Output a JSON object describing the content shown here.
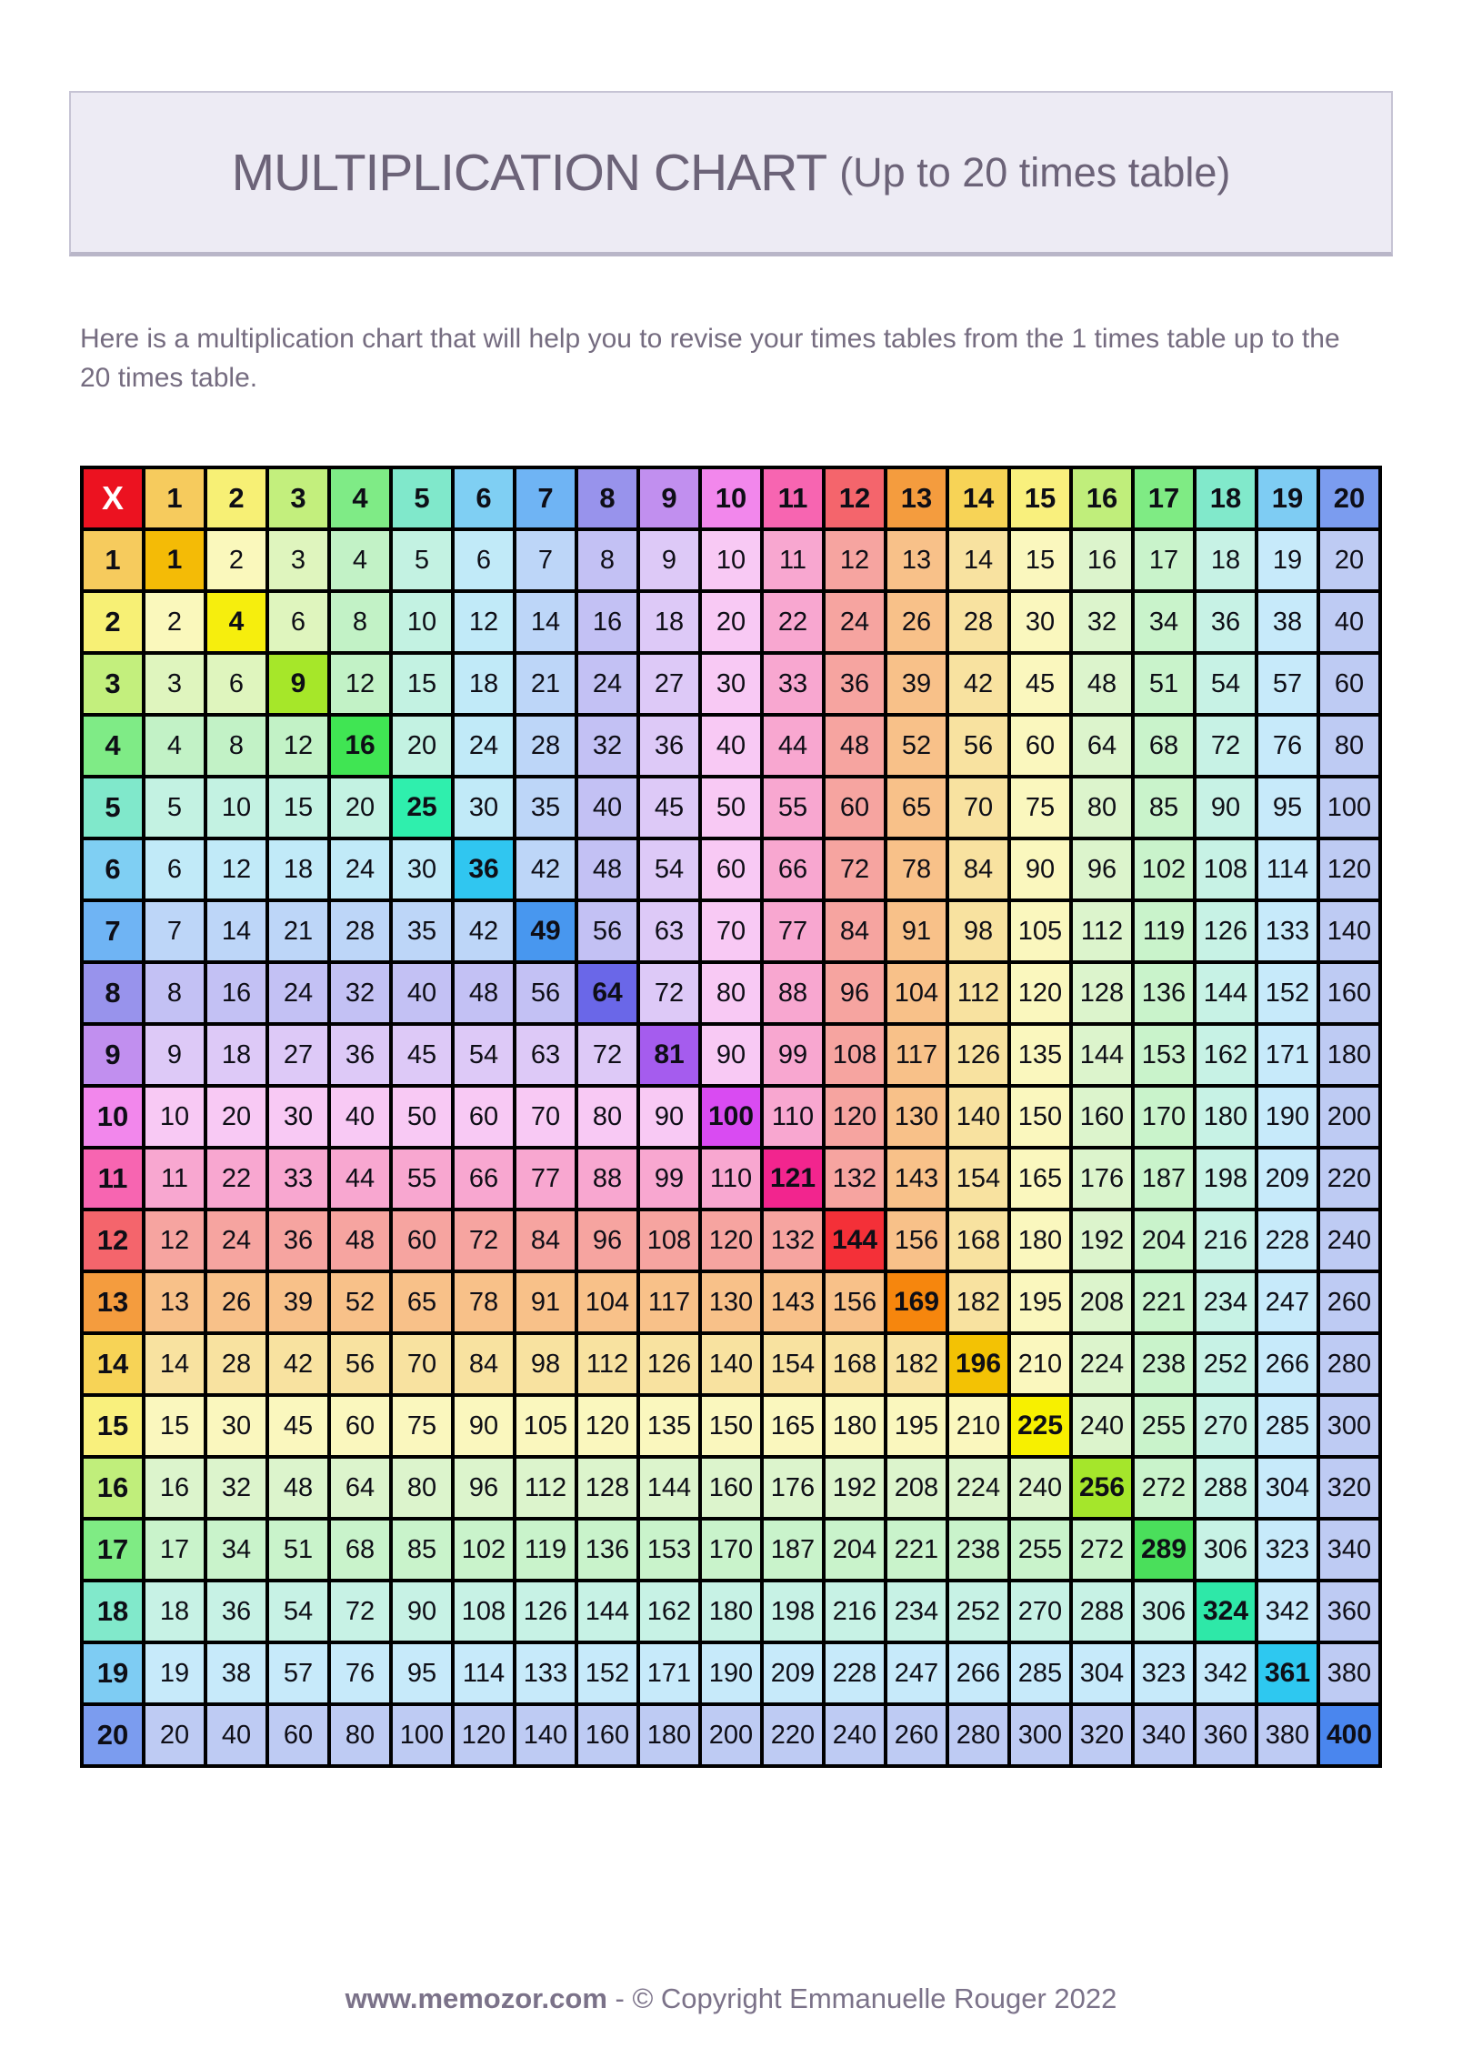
{
  "title": {
    "main": "MULTIPLICATION CHART",
    "sub": "(Up to 20 times table)",
    "box_bg": "#EDEBF4",
    "box_border": "#C6C3D4",
    "text_color": "#6C6378"
  },
  "description": {
    "text": "Here is a multiplication chart that will help you to revise your times tables from the 1 times table up to the 20 times table.",
    "color": "#756C80"
  },
  "footer": {
    "site": "www.memozor.com",
    "rest": " - © Copyright Emmanuelle Rouger 2022",
    "color": "#7B7289"
  },
  "table": {
    "corner_label": "X",
    "corner_bg": "#EC1220",
    "corner_text_color": "#FFFFFF",
    "border_color": "#000000",
    "text_color": "#0E0E16",
    "column_headers": [
      "1",
      "2",
      "3",
      "4",
      "5",
      "6",
      "7",
      "8",
      "9",
      "10",
      "11",
      "12",
      "13",
      "14",
      "15",
      "16",
      "17",
      "18",
      "19",
      "20"
    ],
    "row_headers": [
      "1",
      "2",
      "3",
      "4",
      "5",
      "6",
      "7",
      "8",
      "9",
      "10",
      "11",
      "12",
      "13",
      "14",
      "15",
      "16",
      "17",
      "18",
      "19",
      "20"
    ],
    "rows": [
      [
        1,
        2,
        3,
        4,
        5,
        6,
        7,
        8,
        9,
        10,
        11,
        12,
        13,
        14,
        15,
        16,
        17,
        18,
        19,
        20
      ],
      [
        2,
        4,
        6,
        8,
        10,
        12,
        14,
        16,
        18,
        20,
        22,
        24,
        26,
        28,
        30,
        32,
        34,
        36,
        38,
        40
      ],
      [
        3,
        6,
        9,
        12,
        15,
        18,
        21,
        24,
        27,
        30,
        33,
        36,
        39,
        42,
        45,
        48,
        51,
        54,
        57,
        60
      ],
      [
        4,
        8,
        12,
        16,
        20,
        24,
        28,
        32,
        36,
        40,
        44,
        48,
        52,
        56,
        60,
        64,
        68,
        72,
        76,
        80
      ],
      [
        5,
        10,
        15,
        20,
        25,
        30,
        35,
        40,
        45,
        50,
        55,
        60,
        65,
        70,
        75,
        80,
        85,
        90,
        95,
        100
      ],
      [
        6,
        12,
        18,
        24,
        30,
        36,
        42,
        48,
        54,
        60,
        66,
        72,
        78,
        84,
        90,
        96,
        102,
        108,
        114,
        120
      ],
      [
        7,
        14,
        21,
        28,
        35,
        42,
        49,
        56,
        63,
        70,
        77,
        84,
        91,
        98,
        105,
        112,
        119,
        126,
        133,
        140
      ],
      [
        8,
        16,
        24,
        32,
        40,
        48,
        56,
        64,
        72,
        80,
        88,
        96,
        104,
        112,
        120,
        128,
        136,
        144,
        152,
        160
      ],
      [
        9,
        18,
        27,
        36,
        45,
        54,
        63,
        72,
        81,
        90,
        99,
        108,
        117,
        126,
        135,
        144,
        153,
        162,
        171,
        180
      ],
      [
        10,
        20,
        30,
        40,
        50,
        60,
        70,
        80,
        90,
        100,
        110,
        120,
        130,
        140,
        150,
        160,
        170,
        180,
        190,
        200
      ],
      [
        11,
        22,
        33,
        44,
        55,
        66,
        77,
        88,
        99,
        110,
        121,
        132,
        143,
        154,
        165,
        176,
        187,
        198,
        209,
        220
      ],
      [
        12,
        24,
        36,
        48,
        60,
        72,
        84,
        96,
        108,
        120,
        132,
        144,
        156,
        168,
        180,
        192,
        204,
        216,
        228,
        240
      ],
      [
        13,
        26,
        39,
        52,
        65,
        78,
        91,
        104,
        117,
        130,
        143,
        156,
        169,
        182,
        195,
        208,
        221,
        234,
        247,
        260
      ],
      [
        14,
        28,
        42,
        56,
        70,
        84,
        98,
        112,
        126,
        140,
        154,
        168,
        182,
        196,
        210,
        224,
        238,
        252,
        266,
        280
      ],
      [
        15,
        30,
        45,
        60,
        75,
        90,
        105,
        120,
        135,
        150,
        165,
        180,
        195,
        210,
        225,
        240,
        255,
        270,
        285,
        300
      ],
      [
        16,
        32,
        48,
        64,
        80,
        96,
        112,
        128,
        144,
        160,
        176,
        192,
        208,
        224,
        240,
        256,
        272,
        288,
        304,
        320
      ],
      [
        17,
        34,
        51,
        68,
        85,
        102,
        119,
        136,
        153,
        170,
        187,
        204,
        221,
        238,
        255,
        272,
        289,
        306,
        323,
        340
      ],
      [
        18,
        36,
        54,
        72,
        90,
        108,
        126,
        144,
        162,
        180,
        198,
        216,
        234,
        252,
        270,
        288,
        306,
        324,
        342,
        360
      ],
      [
        19,
        38,
        57,
        76,
        95,
        114,
        133,
        152,
        171,
        190,
        209,
        228,
        247,
        266,
        285,
        304,
        323,
        342,
        361,
        380
      ],
      [
        20,
        40,
        60,
        80,
        100,
        120,
        140,
        160,
        180,
        200,
        220,
        240,
        260,
        280,
        300,
        320,
        340,
        360,
        380,
        400
      ]
    ],
    "palette": {
      "header": [
        "#F6CB5D",
        "#F7F075",
        "#C3EF7D",
        "#7FEB86",
        "#80E8CB",
        "#7FCFF3",
        "#6FB4F4",
        "#9893EC",
        "#C18FEF",
        "#F287EC",
        "#F765B1",
        "#F4656C",
        "#F49C3E",
        "#F7D356",
        "#F9F07D",
        "#C0EE7B",
        "#7FEB84",
        "#81E9CB",
        "#7ECCF3",
        "#7B9CEF"
      ],
      "pale": [
        "#F8E0A0",
        "#FAF8BC",
        "#DFF5BE",
        "#C2F2C6",
        "#C3F2E2",
        "#C1EAF8",
        "#BDD6F8",
        "#C3C1F4",
        "#DDC9F7",
        "#F8C9F4",
        "#F8A7D0",
        "#F6A4A0",
        "#F8C189",
        "#F8E2A0",
        "#FAF7BE",
        "#DCF4CC",
        "#C9F3CB",
        "#C7F2E5",
        "#C7EAFA",
        "#BECBF3"
      ],
      "diagonal": [
        "#F4BB06",
        "#F6EE0D",
        "#A6E729",
        "#40E553",
        "#2FEFAD",
        "#30C6F0",
        "#4897EF",
        "#6A67E8",
        "#A55CEE",
        "#D94BF2",
        "#F2258E",
        "#F43038",
        "#F6860D",
        "#F3C204",
        "#F7F000",
        "#A5E62B",
        "#4ADF5B",
        "#2EE8A8",
        "#2EC8F0",
        "#4A86EE"
      ]
    }
  }
}
